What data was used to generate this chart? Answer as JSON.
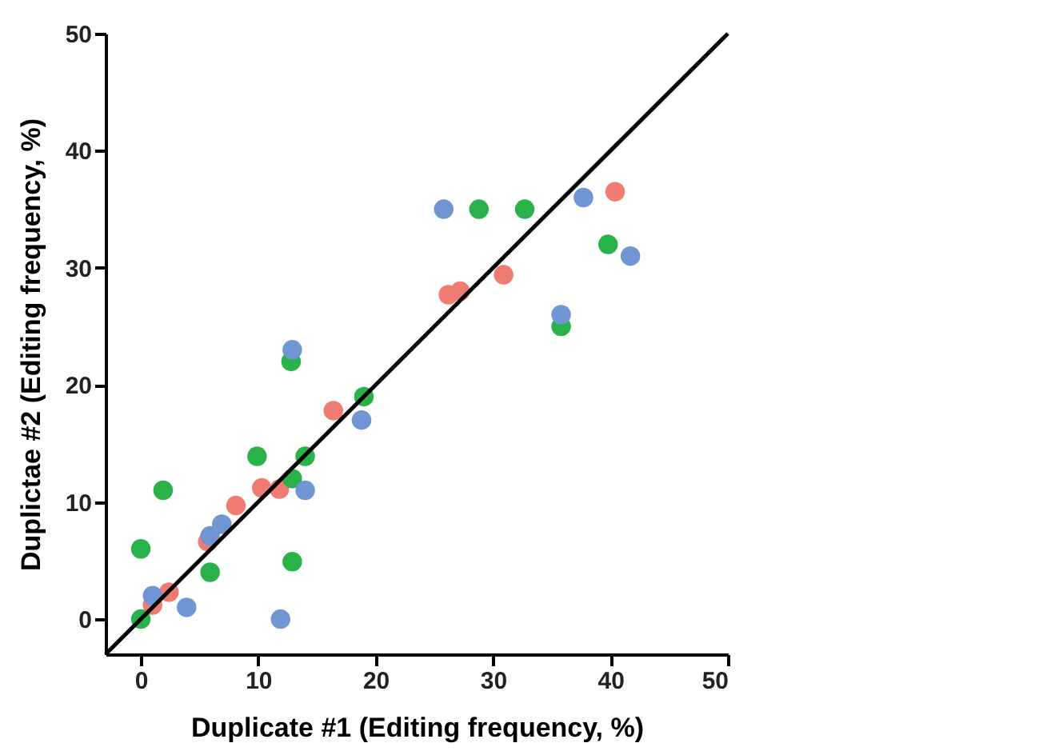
{
  "chart_data": {
    "type": "scatter",
    "xlabel": "Duplicate #1 (Editing frequency, %)",
    "ylabel": "Duplictae #2 (Editing frequency, %)",
    "xlim": [
      -3,
      50
    ],
    "ylim": [
      -3,
      50
    ],
    "xticks": [
      0,
      10,
      20,
      30,
      40,
      50
    ],
    "yticks": [
      0,
      10,
      20,
      30,
      40,
      50
    ],
    "grid": false,
    "marker": "circle",
    "series": [
      {
        "color": "#f07b72",
        "x": [
          40.4,
          30.9,
          27.2,
          26.2,
          16.4,
          10.3,
          11.8,
          8.1,
          5.7,
          2.4,
          1.0
        ],
        "values": [
          36.5,
          29.4,
          28.0,
          27.7,
          17.8,
          11.2,
          11.1,
          9.7,
          6.6,
          2.3,
          1.2
        ]
      },
      {
        "color": "#2ab24a",
        "x": [
          28.8,
          32.7,
          39.8,
          35.8,
          19.0,
          12.8,
          9.9,
          14.0,
          12.9,
          1.9,
          0,
          5.9,
          12.9,
          0
        ],
        "values": [
          35.0,
          35.0,
          32.0,
          25.0,
          19.0,
          22.0,
          13.9,
          13.9,
          12.0,
          11.0,
          6.0,
          4.0,
          4.9,
          0
        ]
      },
      {
        "color": "#6f96d3",
        "x": [
          25.8,
          37.7,
          41.7,
          35.8,
          12.9,
          18.8,
          14.0,
          6.9,
          5.9,
          1.0,
          3.9,
          11.9
        ],
        "values": [
          35.0,
          36.0,
          31.0,
          26.0,
          23.0,
          17.0,
          11.0,
          8.1,
          7.1,
          2.0,
          1.0,
          0
        ]
      },
      {
        "type": "line",
        "marker": "none",
        "color": "#000000",
        "x": [
          -3,
          50
        ],
        "values": [
          -3,
          50
        ]
      }
    ]
  }
}
